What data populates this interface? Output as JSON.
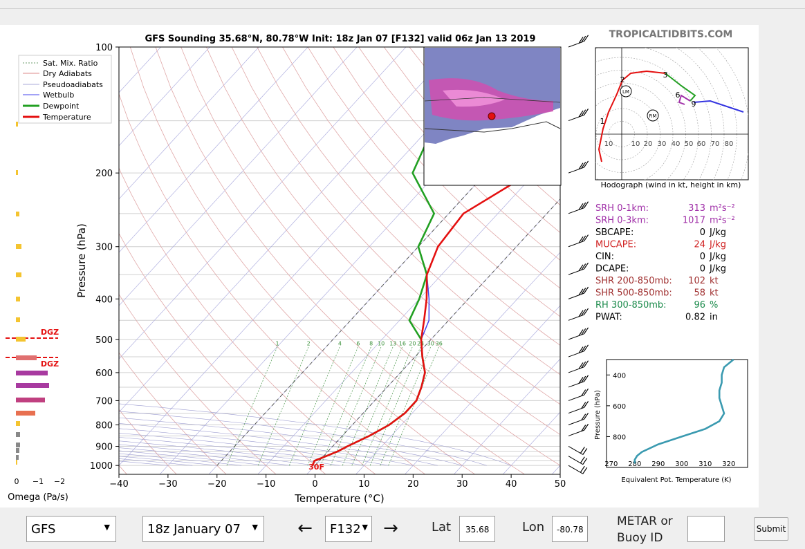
{
  "header": {
    "site": "TROPICALTIDBITS.COM"
  },
  "chart_data": {
    "type": "skewt",
    "title": "GFS Sounding 35.68°N, 80.78°W Init: 18z Jan 07 [F132] valid 06z Jan 13 2019",
    "xlabel": "Temperature (°C)",
    "ylabel": "Pressure (hPa)",
    "x_ticks": [
      "−40",
      "−30",
      "−20",
      "−10",
      "0",
      "10",
      "20",
      "30",
      "40",
      "50"
    ],
    "y_ticks": [
      "100",
      "200",
      "300",
      "400",
      "500",
      "600",
      "700",
      "800",
      "900",
      "1000"
    ],
    "legend": [
      "Sat. Mix. Ratio",
      "Dry Adiabats",
      "Pseudoadiabats",
      "Wetbulb",
      "Dewpoint",
      "Temperature"
    ],
    "mixing_ratio_labels": [
      "1",
      "2",
      "4",
      "6",
      "8",
      "10",
      "13",
      "16",
      "20",
      "24",
      "30",
      "36"
    ],
    "surface_label": "30F",
    "temperature": {
      "p": [
        1000,
        975,
        950,
        925,
        900,
        850,
        800,
        750,
        700,
        650,
        600,
        550,
        500,
        450,
        400,
        350,
        300,
        250,
        200,
        150,
        100
      ],
      "t": [
        -0.5,
        -1,
        0.5,
        2,
        3,
        5.5,
        7.5,
        8.5,
        8.5,
        7,
        5,
        1.5,
        -2,
        -5,
        -8.5,
        -13,
        -16,
        -17,
        -11,
        -2,
        -4
      ]
    },
    "dewpoint": {
      "p": [
        1000,
        975,
        950,
        925,
        900,
        850,
        800,
        750,
        700,
        650,
        600,
        550,
        500,
        450,
        400,
        350,
        300,
        250,
        200,
        150,
        100
      ],
      "td": [
        -0.5,
        -1,
        0.5,
        2,
        3,
        5.5,
        7.5,
        8.5,
        8.5,
        7,
        5,
        1.5,
        -2,
        -8,
        -10,
        -13,
        -20,
        -23,
        -35,
        -40,
        -30
      ]
    },
    "wetbulb": {
      "p": [
        1000,
        975,
        950,
        925,
        900,
        850,
        800,
        750,
        700,
        650,
        600,
        550,
        500,
        450,
        400,
        350,
        300,
        250,
        200,
        150,
        100
      ],
      "tw": [
        -0.5,
        -1,
        0.5,
        2,
        3,
        5.5,
        7.5,
        8.5,
        8.5,
        7,
        5,
        1.5,
        -2,
        -4,
        -8,
        -13,
        -16,
        -17,
        -11,
        -2,
        -4
      ]
    }
  },
  "omega": {
    "xlabel": "Omega (Pa/s)",
    "ticks": [
      "0",
      "−1",
      "−2"
    ],
    "dgz": "DGZ"
  },
  "hodograph": {
    "caption": "Hodograph (wind in kt, height in km)",
    "rings": [
      "10",
      "10",
      "20",
      "30",
      "40",
      "50",
      "60",
      "70",
      "80"
    ],
    "points": [
      "1",
      "2",
      "3",
      "6",
      "9"
    ],
    "lm": "LM",
    "rm": "RM"
  },
  "indices": [
    {
      "label": "SRH 0-1km:",
      "value": "313",
      "unit": "m²s⁻²",
      "color": "#a030a8"
    },
    {
      "label": "SRH 0-3km:",
      "value": "1017",
      "unit": "m²s⁻²",
      "color": "#a030a8"
    },
    {
      "label": "SBCAPE:",
      "value": "0",
      "unit": "J/kg",
      "color": "#000000"
    },
    {
      "label": "MUCAPE:",
      "value": "24",
      "unit": "J/kg",
      "color": "#d02020"
    },
    {
      "label": "CIN:",
      "value": "0",
      "unit": "J/kg",
      "color": "#000000"
    },
    {
      "label": "DCAPE:",
      "value": "0",
      "unit": "J/kg",
      "color": "#000000"
    },
    {
      "label": "SHR 200-850mb:",
      "value": "102",
      "unit": "kt",
      "color": "#a03030"
    },
    {
      "label": "SHR 500-850mb:",
      "value": "58",
      "unit": "kt",
      "color": "#a03030"
    },
    {
      "label": "RH 300-850mb:",
      "value": "96",
      "unit": "%",
      "color": "#1a8a4a"
    },
    {
      "label": "PWAT:",
      "value": "0.82",
      "unit": "in",
      "color": "#000000"
    }
  ],
  "theta_e": {
    "xlabel": "Equivalent Pot. Temperature (K)",
    "ylabel": "Pressure (hPa)",
    "x_ticks": [
      "270",
      "280",
      "290",
      "300",
      "310",
      "320"
    ],
    "y_ticks": [
      "400",
      "600",
      "800"
    ],
    "profile": {
      "p": [
        300,
        350,
        400,
        450,
        500,
        550,
        600,
        650,
        700,
        750,
        800,
        850,
        900,
        925,
        950,
        975
      ],
      "theta": [
        322,
        318,
        317,
        317,
        316,
        316,
        317,
        318,
        316,
        310,
        300,
        290,
        283,
        281,
        280,
        280
      ]
    }
  },
  "controls": {
    "model": "GFS",
    "init": "18z January 07",
    "prev": "←",
    "forecast": "F132",
    "next": "→",
    "lat_label": "Lat",
    "lat": "35.68",
    "lon_label": "Lon",
    "lon": "-80.78",
    "metar_label": "METAR or Buoy ID",
    "metar": "",
    "submit": "Submit"
  }
}
